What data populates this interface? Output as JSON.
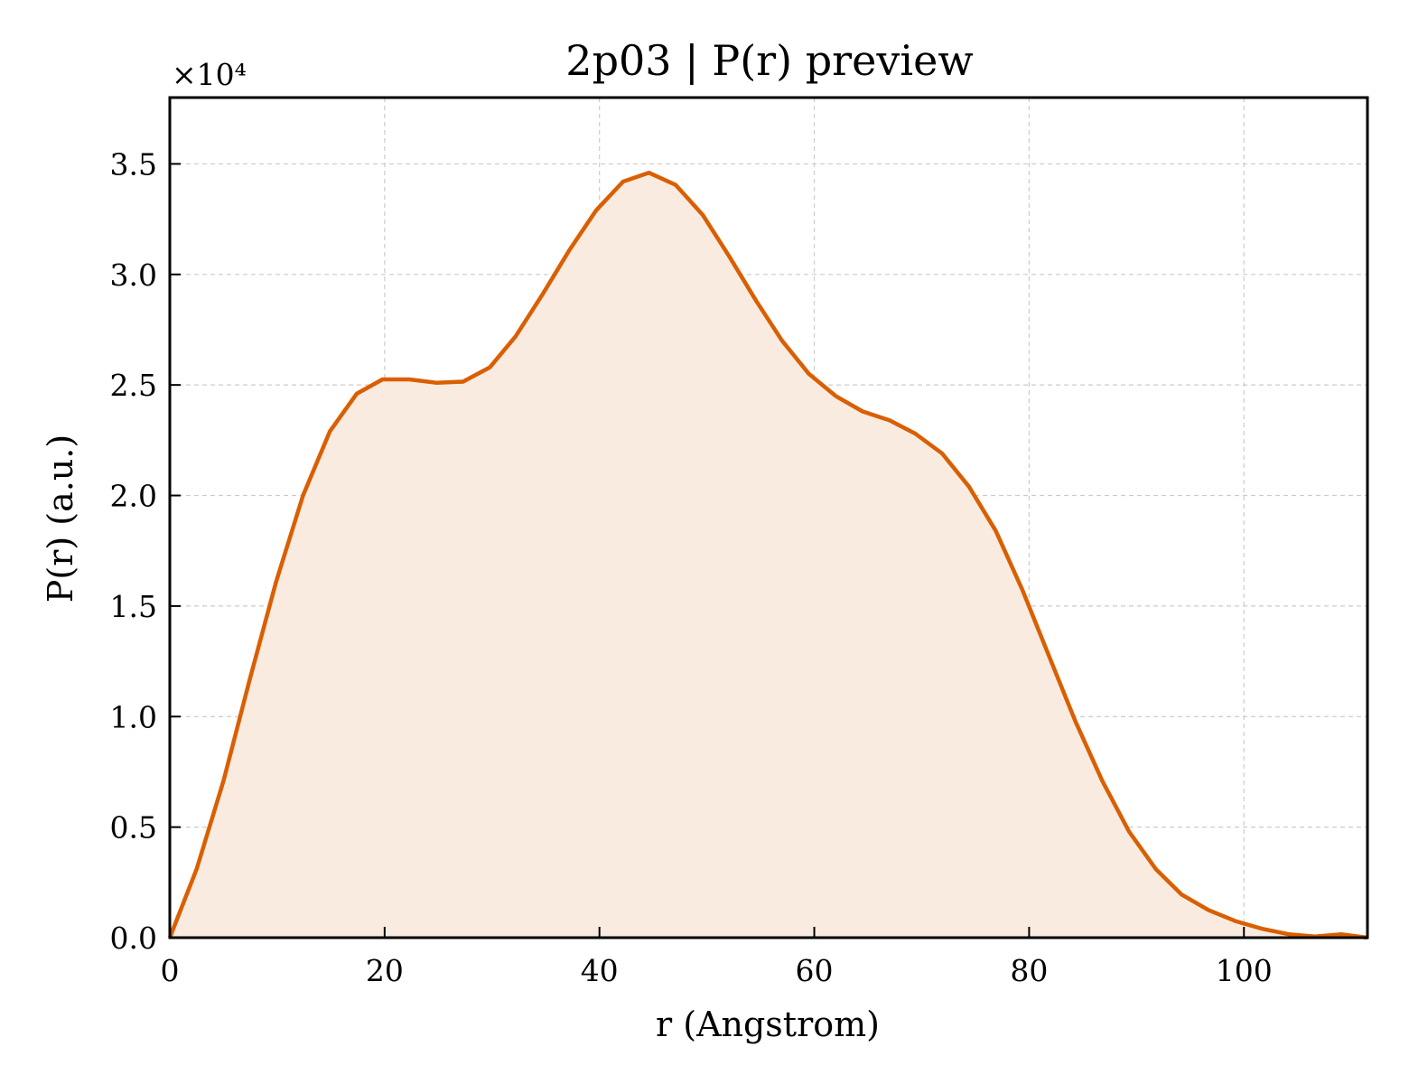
{
  "chart_data": {
    "type": "area",
    "title": "2p03 | P(r) preview",
    "xlabel": "r (Angstrom)",
    "ylabel": "P(r) (a.u.)",
    "y_offset_label": "×10⁴",
    "xlim": [
      0,
      111.5
    ],
    "ylim": [
      0,
      3.8
    ],
    "xticks": [
      0,
      20,
      40,
      60,
      80,
      100
    ],
    "xtick_labels": [
      "0",
      "20",
      "40",
      "60",
      "80",
      "100"
    ],
    "yticks": [
      0.0,
      0.5,
      1.0,
      1.5,
      2.0,
      2.5,
      3.0,
      3.5
    ],
    "ytick_labels": [
      "0.0",
      "0.5",
      "1.0",
      "1.5",
      "2.0",
      "2.5",
      "3.0",
      "3.5"
    ],
    "grid": true,
    "line_color": "#d95f02",
    "fill_color": "#f9ebe0",
    "x": [
      0,
      2.5,
      5,
      7.4,
      9.9,
      12.4,
      14.9,
      17.4,
      19.8,
      22.3,
      24.8,
      27.3,
      29.8,
      32.2,
      34.7,
      37.2,
      39.7,
      42.2,
      44.6,
      47.1,
      49.6,
      52.1,
      54.6,
      57.0,
      59.5,
      62.0,
      64.5,
      67.0,
      69.4,
      71.9,
      74.4,
      76.9,
      79.4,
      81.8,
      84.3,
      86.8,
      89.3,
      91.8,
      94.2,
      96.7,
      99.2,
      101.7,
      104.2,
      106.6,
      109.1,
      111.5
    ],
    "series": [
      {
        "values": [
          0.0,
          0.31,
          0.71,
          1.16,
          1.61,
          2.0,
          2.29,
          2.46,
          2.525,
          2.525,
          2.51,
          2.515,
          2.58,
          2.72,
          2.91,
          3.11,
          3.29,
          3.42,
          3.46,
          3.405,
          3.27,
          3.08,
          2.88,
          2.7,
          2.55,
          2.45,
          2.38,
          2.34,
          2.28,
          2.19,
          2.04,
          1.84,
          1.57,
          1.28,
          0.98,
          0.71,
          0.48,
          0.31,
          0.195,
          0.125,
          0.075,
          0.04,
          0.015,
          0.005,
          0.015,
          0.0
        ]
      }
    ]
  }
}
